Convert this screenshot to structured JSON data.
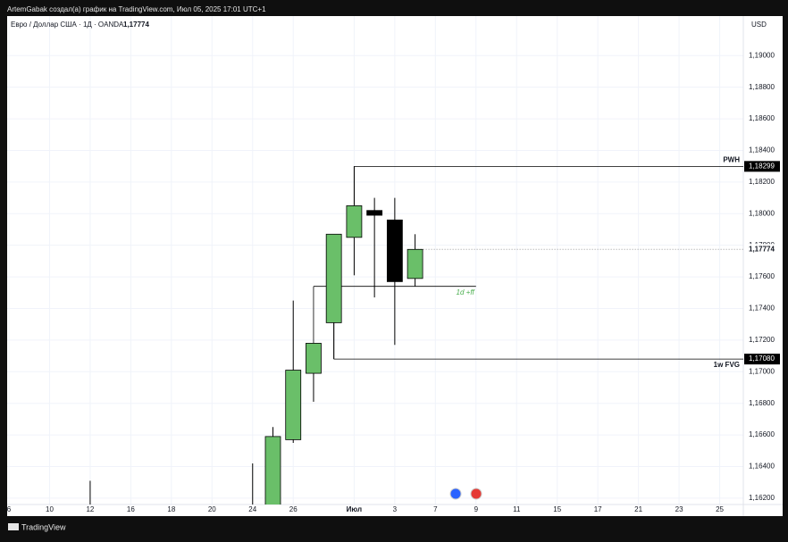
{
  "header": "ArtemGabak создал(а) график на TradingView.com, Июл 05, 2025 17:01 UTC+1",
  "footer": "TradingView",
  "chart_data": {
    "type": "candlestick",
    "title": "Евро / Доллар США · 1Д · OANDA",
    "currency": "USD",
    "last_price": {
      "value": 1.17774,
      "label": "1,17774"
    },
    "categories": [
      "6",
      null,
      "10",
      null,
      "12",
      null,
      "16",
      null,
      "18",
      null,
      "20",
      null,
      "24",
      null,
      "26",
      null,
      null,
      "Июл",
      null,
      "3",
      null,
      "7",
      null,
      "9",
      null,
      "11",
      null,
      "15",
      null,
      "17",
      null,
      "21",
      null,
      "23",
      null,
      "25"
    ],
    "open": [
      null,
      null,
      null,
      null,
      null,
      null,
      null,
      null,
      null,
      null,
      null,
      null,
      null,
      null,
      1.1657,
      1.1699,
      1.1731,
      1.1785,
      1.1802,
      1.1796,
      1.1759,
      null,
      null,
      null,
      null,
      null,
      null,
      null,
      null,
      null,
      null,
      null,
      null,
      null,
      null,
      null
    ],
    "high": [
      null,
      null,
      null,
      null,
      1.1631,
      null,
      null,
      null,
      null,
      null,
      null,
      null,
      1.1642,
      1.1665,
      1.1745,
      1.1718,
      1.1787,
      1.183,
      1.181,
      1.181,
      1.1787,
      null,
      null,
      null,
      null,
      null,
      null,
      null,
      null,
      null,
      null,
      null,
      null,
      null,
      null,
      null
    ],
    "low": [
      null,
      null,
      null,
      null,
      null,
      null,
      null,
      null,
      null,
      null,
      null,
      null,
      null,
      null,
      1.1655,
      1.1681,
      1.1708,
      1.1761,
      1.1747,
      1.1717,
      1.1754,
      null,
      null,
      null,
      null,
      null,
      null,
      null,
      null,
      null,
      null,
      null,
      null,
      null,
      null,
      null
    ],
    "close": [
      null,
      null,
      null,
      null,
      null,
      null,
      null,
      null,
      null,
      null,
      null,
      null,
      null,
      1.1659,
      1.1701,
      1.1718,
      1.1787,
      1.1805,
      1.1799,
      1.1757,
      1.17774,
      null,
      null,
      null,
      null,
      null,
      null,
      null,
      null,
      null,
      null,
      null,
      null,
      null,
      null,
      null
    ],
    "up_color": "#6abf69",
    "down_color": "#000000",
    "ylim": [
      1.1616,
      1.1925
    ],
    "yticks": [
      {
        "value": 1.162,
        "label": "1,16200"
      },
      {
        "value": 1.164,
        "label": "1,16400"
      },
      {
        "value": 1.166,
        "label": "1,16600"
      },
      {
        "value": 1.168,
        "label": "1,16800"
      },
      {
        "value": 1.17,
        "label": "1,17000"
      },
      {
        "value": 1.172,
        "label": "1,17200"
      },
      {
        "value": 1.174,
        "label": "1,17400"
      },
      {
        "value": 1.176,
        "label": "1,17600"
      },
      {
        "value": 1.178,
        "label": "1,17800"
      },
      {
        "value": 1.18,
        "label": "1,18000"
      },
      {
        "value": 1.182,
        "label": "1,18200"
      },
      {
        "value": 1.184,
        "label": "1,18400"
      },
      {
        "value": 1.186,
        "label": "1,18600"
      },
      {
        "value": 1.188,
        "label": "1,18800"
      },
      {
        "value": 1.19,
        "label": "1,19000"
      }
    ],
    "grid": true,
    "annotations": [
      {
        "text": "PWH",
        "value": 1.18299,
        "value_label": "1,18299"
      },
      {
        "text": "1w FVG",
        "value": 1.1708,
        "value_label": "1,17080"
      },
      {
        "text": "1d +ff",
        "value": 1.1754
      }
    ]
  }
}
